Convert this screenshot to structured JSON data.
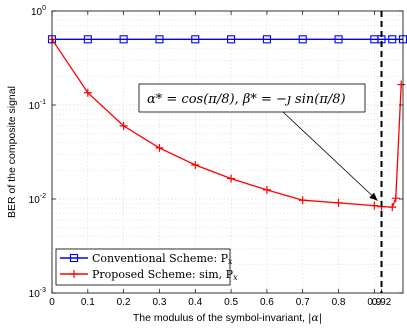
{
  "chart_data": {
    "type": "line",
    "xlabel_prefix": "The modulus of the symbol-invariant, ",
    "xlabel_math": "|α|",
    "ylabel": "BER of the composite signal",
    "y_scale": "log",
    "xlim": [
      0,
      0.98
    ],
    "ylim": [
      0.001,
      1
    ],
    "x_ticks": [
      "0",
      "0.1",
      "0.2",
      "0.3",
      "0.4",
      "0.5",
      "0.6",
      "0.7",
      "0.8",
      "0.9",
      "0.92"
    ],
    "x_tick_values": [
      0,
      0.1,
      0.2,
      0.3,
      0.4,
      0.5,
      0.6,
      0.7,
      0.8,
      0.9,
      0.92
    ],
    "y_ticks": [
      {
        "base": "10",
        "exp": "0",
        "value": 1
      },
      {
        "base": "10",
        "exp": "-1",
        "value": 0.1
      },
      {
        "base": "10",
        "exp": "-2",
        "value": 0.01
      },
      {
        "base": "10",
        "exp": "-3",
        "value": 0.001
      }
    ],
    "grid": true,
    "legend_position": "bottom-left",
    "vline_x": 0.92,
    "annotation": {
      "text": "α* = cos(π/8), β* = −ȷ sin(π/8)",
      "arrow_to": [
        0.92,
        0.0085
      ]
    },
    "series": [
      {
        "name": "Conventional Scheme: P",
        "name_sub": "x",
        "color": "#0000ff",
        "marker": "square",
        "x": [
          0,
          0.1,
          0.2,
          0.3,
          0.4,
          0.5,
          0.6,
          0.7,
          0.8,
          0.9,
          0.92,
          0.95,
          0.98
        ],
        "y": [
          0.5,
          0.5,
          0.5,
          0.5,
          0.5,
          0.5,
          0.5,
          0.5,
          0.5,
          0.5,
          0.5,
          0.5,
          0.5
        ]
      },
      {
        "name": "Proposed Scheme: sim, P",
        "name_sub": "x",
        "color": "#ff0000",
        "marker": "plus",
        "x": [
          0,
          0.1,
          0.2,
          0.3,
          0.4,
          0.5,
          0.6,
          0.7,
          0.8,
          0.9,
          0.92,
          0.95,
          0.96,
          0.975
        ],
        "y": [
          0.5,
          0.135,
          0.06,
          0.035,
          0.023,
          0.0165,
          0.0125,
          0.0097,
          0.0091,
          0.0085,
          0.0083,
          0.0082,
          0.0102,
          0.165
        ]
      }
    ]
  }
}
